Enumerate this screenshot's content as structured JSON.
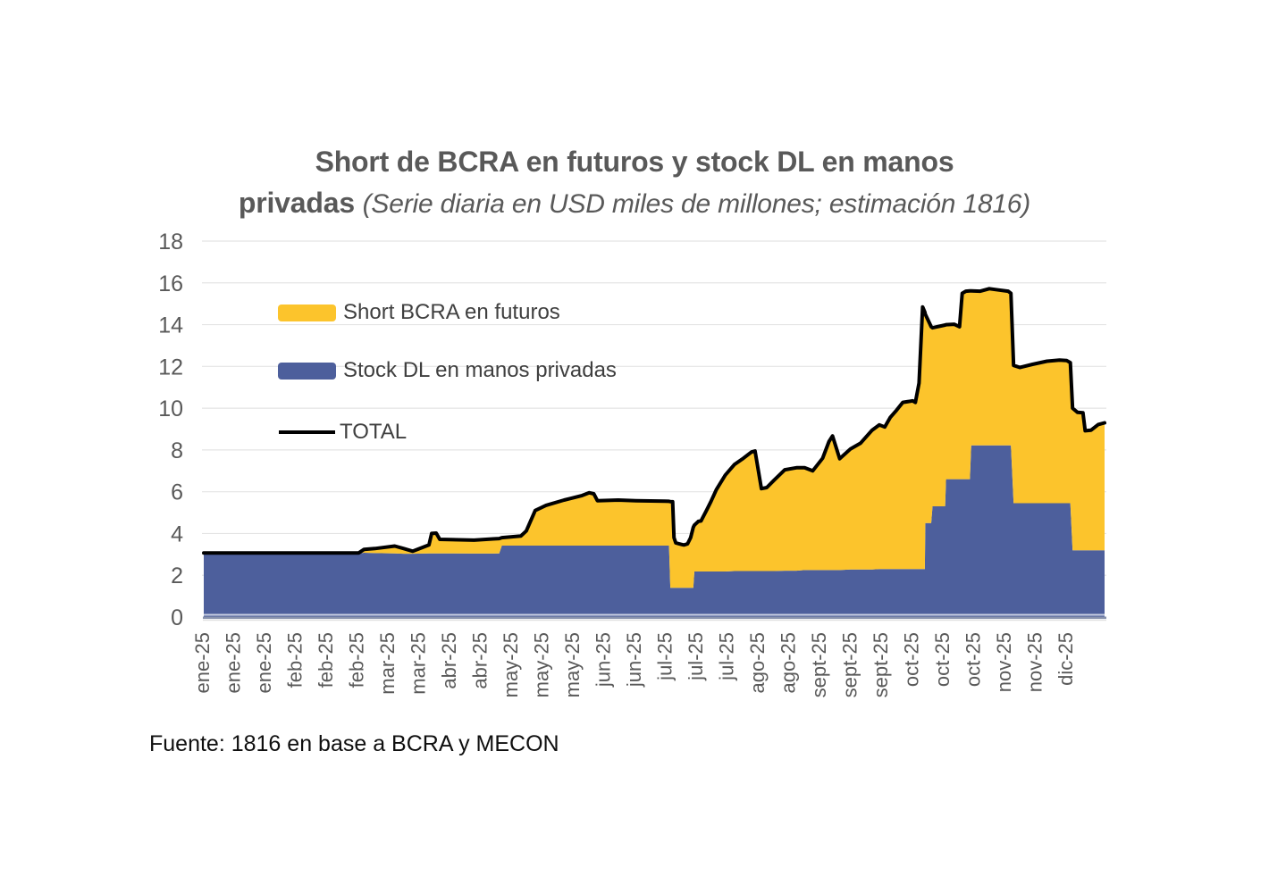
{
  "title": {
    "line1": "Short de BCRA en futuros y stock DL en manos",
    "line2_bold": "privadas",
    "line2_italic": "(Serie diaria en USD miles de millones; estimación 1816)"
  },
  "footer": {
    "source": "Fuente: 1816 en base a BCRA y MECON"
  },
  "legend": [
    {
      "label": "Short BCRA en futuros",
      "color": "#FCC42C",
      "type": "box"
    },
    {
      "label": "Stock DL en manos privadas",
      "color": "#4D5F9C",
      "type": "box"
    },
    {
      "label": "TOTAL",
      "color": "#000000",
      "type": "line"
    }
  ],
  "colors": {
    "short_bcra": "#FCC42C",
    "stock_dl": "#4D5F9C",
    "total_line": "#000000",
    "gridline": "#E4E4E4",
    "axis_text": "#595959",
    "axis_line": "#8791AC",
    "axis_substrip": "#C9CFE2"
  },
  "chart_data": {
    "type": "area",
    "stacked": true,
    "title": "Short de BCRA en futuros y stock DL en manos privadas",
    "subtitle": "Serie diaria en USD miles de millones; estimación 1816",
    "ylabel": "",
    "xlabel": "",
    "ylim": [
      0,
      18
    ],
    "ytick_step": 2,
    "yticks": [
      0,
      2,
      4,
      6,
      8,
      10,
      12,
      14,
      16,
      18
    ],
    "grid": "horizontal",
    "legend_position": "inside-top-left",
    "x_tick_labels": [
      "ene-25",
      "ene-25",
      "ene-25",
      "feb-25",
      "feb-25",
      "feb-25",
      "mar-25",
      "mar-25",
      "abr-25",
      "abr-25",
      "may-25",
      "may-25",
      "may-25",
      "jun-25",
      "jun-25",
      "jul-25",
      "jul-25",
      "jul-25",
      "ago-25",
      "ago-25",
      "sept-25",
      "sept-25",
      "sept-25",
      "oct-25",
      "oct-25",
      "oct-25",
      "nov-25",
      "nov-25",
      "dic-25"
    ],
    "x_unit": "fraction of plot width from ene-25 (0.0) to dic-25 (1.0), daily series",
    "x": [
      0.0,
      0.172,
      0.178,
      0.19,
      0.212,
      0.222,
      0.232,
      0.25,
      0.253,
      0.258,
      0.262,
      0.3,
      0.321,
      0.328,
      0.331,
      0.352,
      0.358,
      0.368,
      0.38,
      0.4,
      0.42,
      0.428,
      0.433,
      0.437,
      0.46,
      0.48,
      0.512,
      0.5165,
      0.518,
      0.5205,
      0.522,
      0.524,
      0.528,
      0.533,
      0.537,
      0.5405,
      0.5435,
      0.5446,
      0.549,
      0.552,
      0.558,
      0.563,
      0.569,
      0.579,
      0.589,
      0.599,
      0.608,
      0.612,
      0.619,
      0.625,
      0.633,
      0.645,
      0.658,
      0.667,
      0.676,
      0.687,
      0.694,
      0.698,
      0.706,
      0.718,
      0.729,
      0.742,
      0.75,
      0.756,
      0.762,
      0.769,
      0.776,
      0.787,
      0.79,
      0.794,
      0.798,
      0.8005,
      0.801,
      0.8075,
      0.809,
      0.823,
      0.824,
      0.833,
      0.839,
      0.842,
      0.846,
      0.8505,
      0.852,
      0.862,
      0.872,
      0.882,
      0.893,
      0.896,
      0.899,
      0.906,
      0.92,
      0.936,
      0.95,
      0.958,
      0.962,
      0.9645,
      0.97,
      0.976,
      0.9785,
      0.985,
      0.993,
      1.0
    ],
    "series": [
      {
        "name": "Stock DL en manos privadas",
        "role": "base-area",
        "color": "#4D5F9C",
        "values": [
          3.05,
          3.05,
          3.08,
          3.06,
          3.05,
          3.03,
          3.03,
          3.05,
          3.05,
          3.05,
          3.05,
          3.04,
          3.04,
          3.05,
          3.42,
          3.42,
          3.42,
          3.42,
          3.42,
          3.42,
          3.42,
          3.42,
          3.42,
          3.42,
          3.42,
          3.42,
          3.42,
          3.42,
          1.4,
          1.4,
          1.4,
          1.4,
          1.4,
          1.4,
          1.4,
          1.4,
          1.4,
          2.18,
          2.18,
          2.18,
          2.18,
          2.18,
          2.18,
          2.18,
          2.2,
          2.2,
          2.2,
          2.2,
          2.2,
          2.2,
          2.2,
          2.22,
          2.22,
          2.25,
          2.25,
          2.25,
          2.25,
          2.25,
          2.25,
          2.28,
          2.28,
          2.28,
          2.3,
          2.3,
          2.3,
          2.3,
          2.3,
          2.3,
          2.3,
          2.3,
          2.3,
          2.3,
          4.5,
          4.5,
          5.3,
          5.3,
          6.6,
          6.6,
          6.6,
          6.6,
          6.6,
          6.6,
          8.22,
          8.22,
          8.22,
          8.22,
          8.22,
          8.22,
          5.45,
          5.45,
          5.45,
          5.45,
          5.45,
          5.45,
          5.45,
          3.2,
          3.2,
          3.2,
          3.2,
          3.2,
          3.2,
          3.2
        ]
      },
      {
        "name": "Short BCRA en futuros",
        "role": "stacked-area (drawn between Stock DL and TOTAL)",
        "color": "#FCC42C",
        "values": [
          0.02,
          0.02,
          0.16,
          0.22,
          0.35,
          0.25,
          0.12,
          0.4,
          0.95,
          0.97,
          0.67,
          0.64,
          0.7,
          0.71,
          0.38,
          0.46,
          0.7,
          1.68,
          1.93,
          2.18,
          2.4,
          2.53,
          2.48,
          2.15,
          2.18,
          2.15,
          2.13,
          2.12,
          4.13,
          4.12,
          2.4,
          2.15,
          2.1,
          2.05,
          2.1,
          2.4,
          2.9,
          2.22,
          2.4,
          2.42,
          2.92,
          3.35,
          3.92,
          4.62,
          5.1,
          5.4,
          5.7,
          5.75,
          3.95,
          4.0,
          4.35,
          4.83,
          4.93,
          4.9,
          4.75,
          5.35,
          6.15,
          6.42,
          5.33,
          5.77,
          6.04,
          6.67,
          6.9,
          6.8,
          7.25,
          7.6,
          7.98,
          8.05,
          7.98,
          8.9,
          12.55,
          12.3,
          10.0,
          9.4,
          8.55,
          8.68,
          7.4,
          7.42,
          7.3,
          8.9,
          9.0,
          9.02,
          7.4,
          7.38,
          7.5,
          7.44,
          7.38,
          7.28,
          6.6,
          6.5,
          6.65,
          6.8,
          6.85,
          6.83,
          6.73,
          6.8,
          6.6,
          6.58,
          5.72,
          5.75,
          6.02,
          6.1
        ]
      },
      {
        "name": "TOTAL",
        "role": "line",
        "color": "#000000",
        "values": [
          3.07,
          3.07,
          3.24,
          3.28,
          3.4,
          3.28,
          3.15,
          3.45,
          4.0,
          4.02,
          3.72,
          3.68,
          3.74,
          3.76,
          3.8,
          3.88,
          4.12,
          5.1,
          5.35,
          5.6,
          5.82,
          5.95,
          5.9,
          5.57,
          5.6,
          5.57,
          5.55,
          5.54,
          5.53,
          5.52,
          3.8,
          3.55,
          3.5,
          3.45,
          3.5,
          3.8,
          4.3,
          4.4,
          4.58,
          4.6,
          5.1,
          5.53,
          6.1,
          6.8,
          7.3,
          7.6,
          7.9,
          7.95,
          6.15,
          6.2,
          6.55,
          7.05,
          7.15,
          7.15,
          7.0,
          7.6,
          8.4,
          8.67,
          7.58,
          8.05,
          8.32,
          8.95,
          9.2,
          9.1,
          9.55,
          9.9,
          10.28,
          10.35,
          10.28,
          11.2,
          14.85,
          14.6,
          14.5,
          13.9,
          13.85,
          13.98,
          14.0,
          14.02,
          13.9,
          15.5,
          15.6,
          15.62,
          15.62,
          15.6,
          15.72,
          15.66,
          15.6,
          15.5,
          12.05,
          11.95,
          12.1,
          12.25,
          12.3,
          12.28,
          12.18,
          10.0,
          9.8,
          9.78,
          8.92,
          8.95,
          9.22,
          9.3
        ]
      }
    ]
  }
}
